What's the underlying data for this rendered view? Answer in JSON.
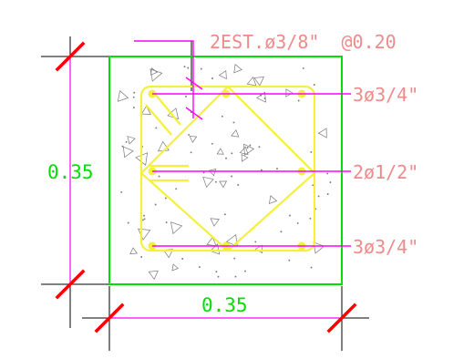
{
  "drawing": {
    "stirrup_label": "2EST.ø3/8\"  @0.20",
    "rebar_labels": [
      "3ø3/4\"",
      "2ø1/2\"",
      "3ø3/4\""
    ],
    "dim_height": "0.35",
    "dim_width": "0.35"
  },
  "colors": {
    "outline": "#00e000",
    "stirrup": "#f5f03c",
    "leader": "#ff00ff",
    "label": "#f08a8a",
    "dim_text": "#00e000",
    "tick": "#ff0000",
    "dim_line": "#000000",
    "hatch": "#7a7a7a"
  }
}
